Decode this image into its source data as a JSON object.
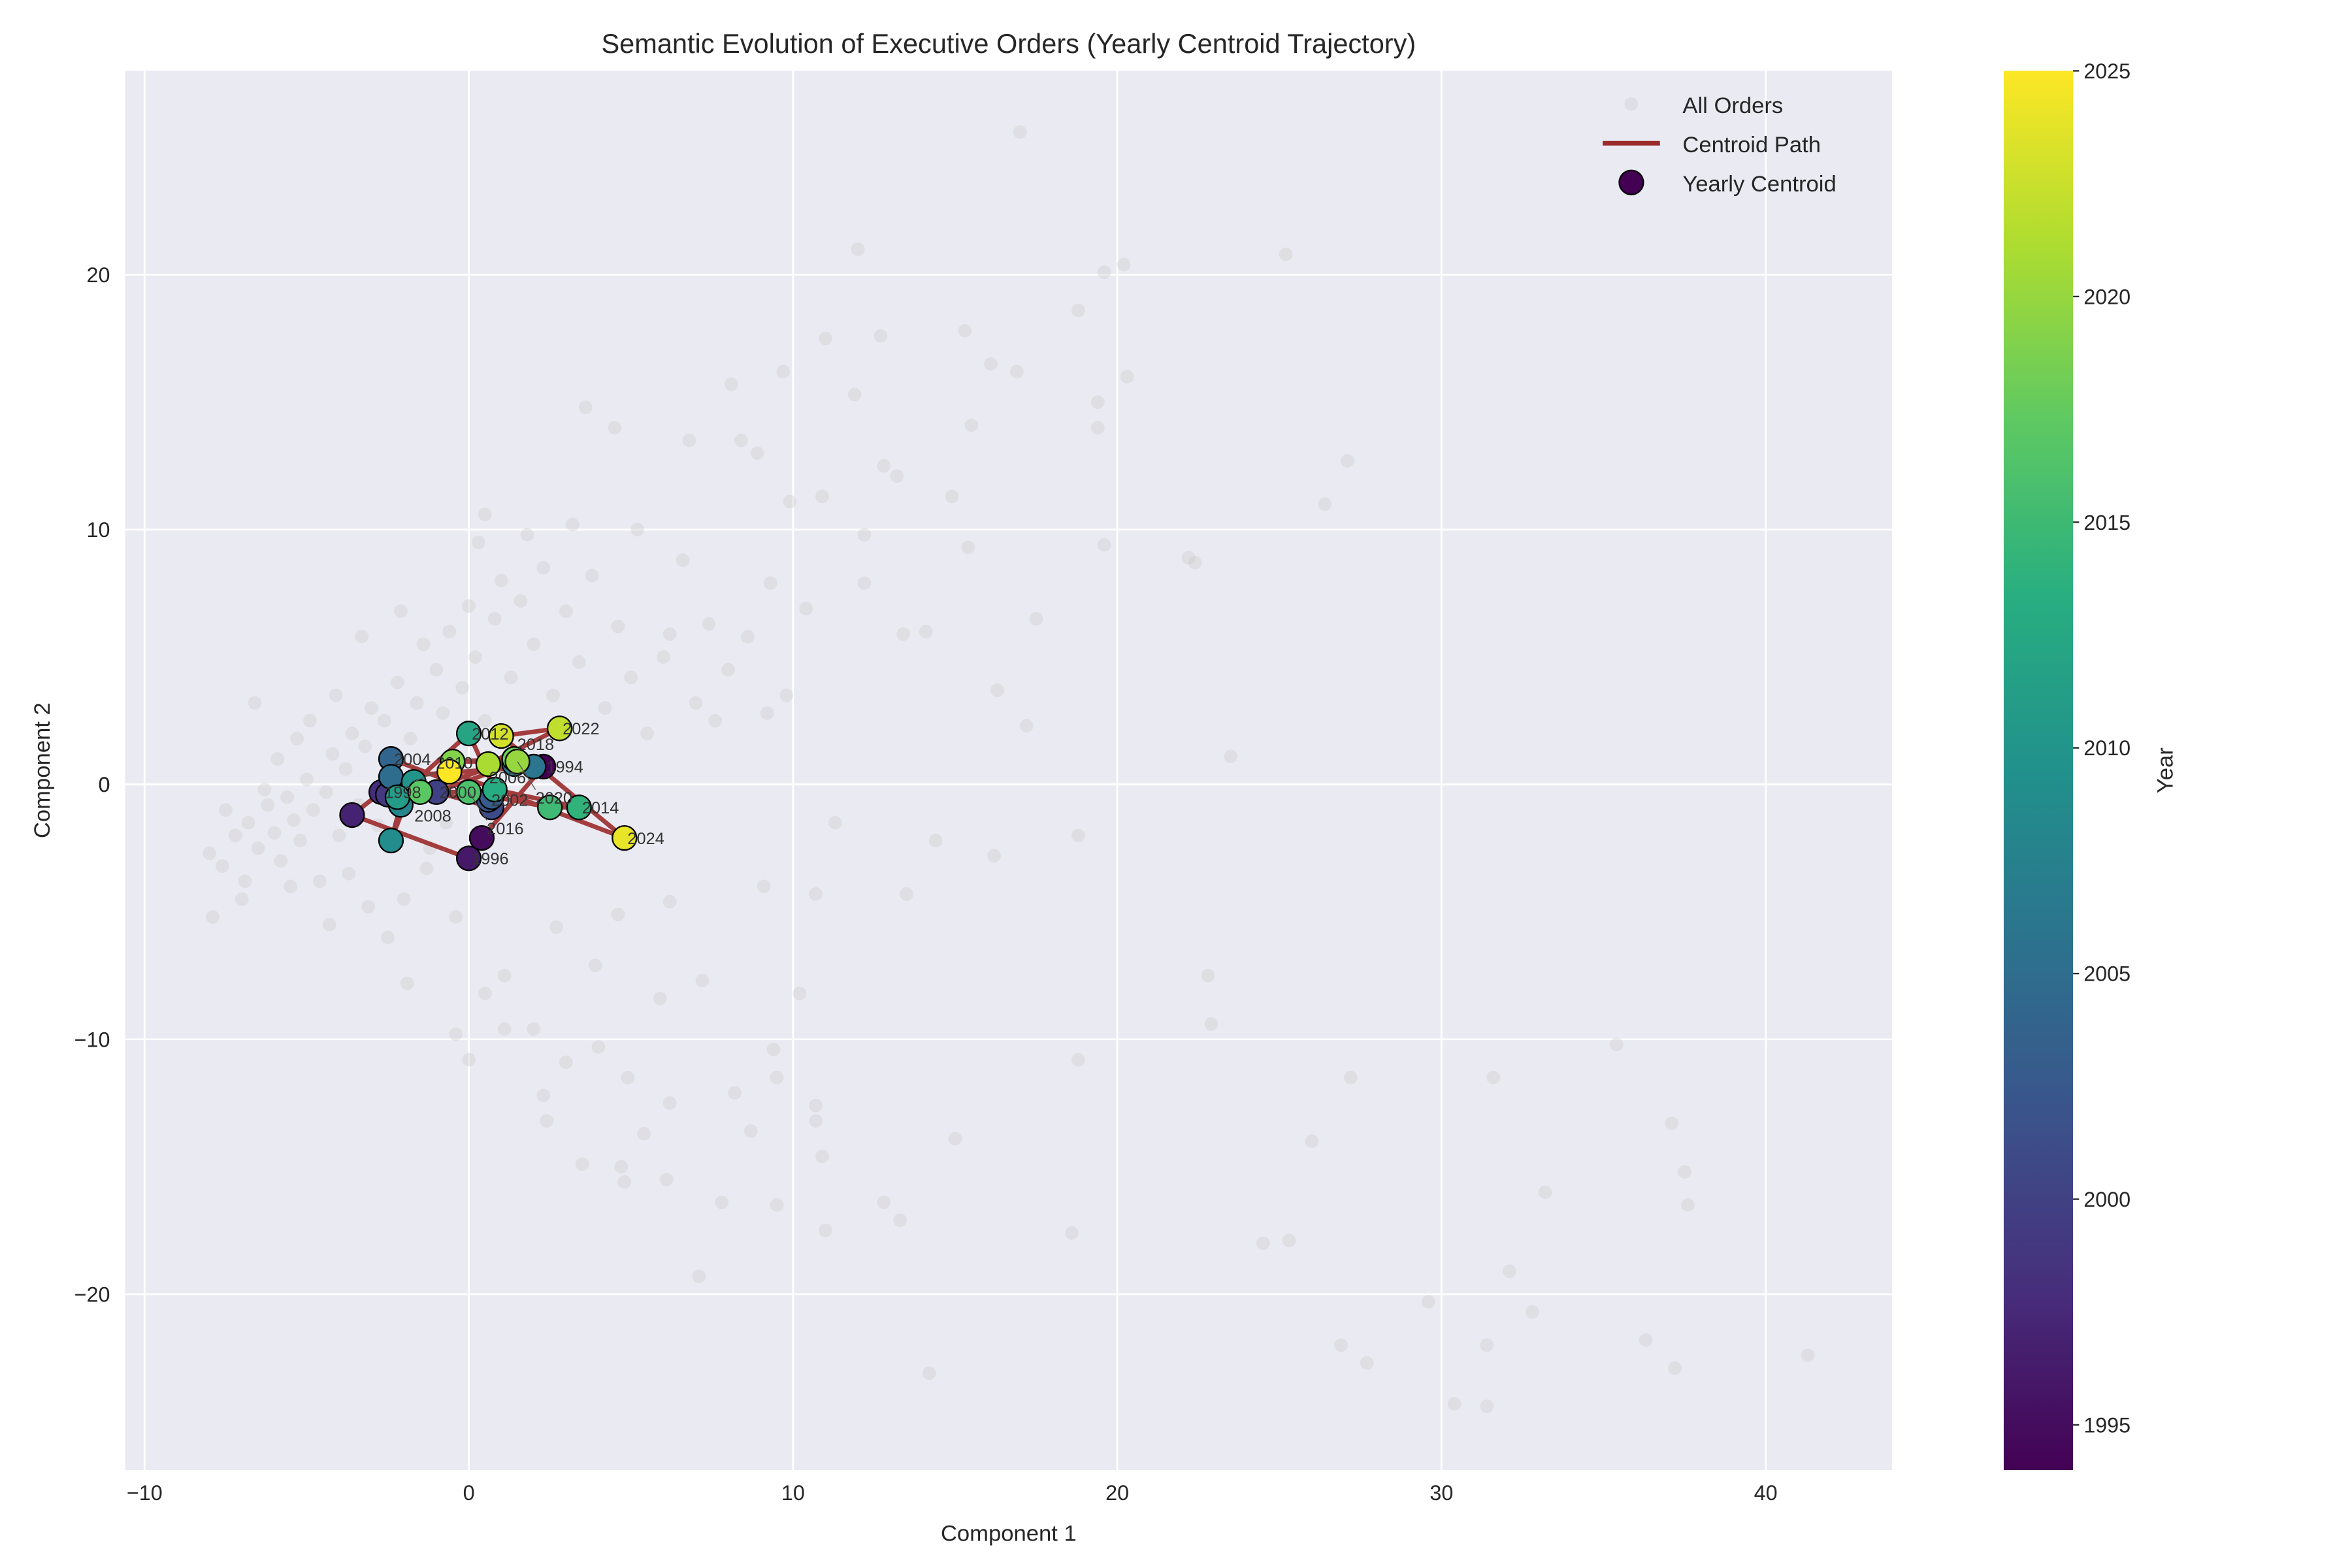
{
  "chart_data": {
    "type": "scatter",
    "title": "Semantic Evolution of Executive Orders (Yearly Centroid Trajectory)",
    "xlabel": "Component 1",
    "ylabel": "Component 2",
    "xlim": [
      -10.6,
      43.9
    ],
    "ylim": [
      -26.9,
      28.0
    ],
    "xticks": [
      -10,
      0,
      10,
      20,
      30,
      40
    ],
    "yticks": [
      -20,
      -10,
      0,
      10,
      20
    ],
    "grid": true,
    "background": "#eaeaf2",
    "legend": {
      "placement": "top-right",
      "entries": [
        "All Orders",
        "Centroid Path",
        "Yearly Centroid"
      ]
    },
    "colorbar": {
      "label": "Year",
      "range": [
        1994,
        2025
      ],
      "ticks": [
        1995,
        2000,
        2005,
        2010,
        2015,
        2020,
        2025
      ],
      "colormap": "viridis"
    },
    "path_color": "#9b2a2a",
    "orders_color": "#cccccc",
    "all_orders": [
      [
        17,
        25.6
      ],
      [
        12,
        21
      ],
      [
        25.2,
        20.8
      ],
      [
        19.6,
        20.1
      ],
      [
        20.2,
        20.4
      ],
      [
        19.4,
        15
      ],
      [
        18.8,
        18.6
      ],
      [
        20.3,
        16
      ],
      [
        16.1,
        16.5
      ],
      [
        16.9,
        16.2
      ],
      [
        15.3,
        17.8
      ],
      [
        11,
        17.5
      ],
      [
        12.7,
        17.6
      ],
      [
        9.7,
        16.2
      ],
      [
        8.1,
        15.7
      ],
      [
        11.9,
        15.3
      ],
      [
        15.5,
        14.1
      ],
      [
        19.4,
        14
      ],
      [
        22.2,
        8.9
      ],
      [
        22.4,
        8.7
      ],
      [
        19.6,
        9.4
      ],
      [
        27.1,
        12.7
      ],
      [
        26.4,
        11
      ],
      [
        23.5,
        1.1
      ],
      [
        17.5,
        6.5
      ],
      [
        17.2,
        2.3
      ],
      [
        16.3,
        3.7
      ],
      [
        14.9,
        11.3
      ],
      [
        13.2,
        12.1
      ],
      [
        12.8,
        12.5
      ],
      [
        10.9,
        11.3
      ],
      [
        9.9,
        11.1
      ],
      [
        8.9,
        13
      ],
      [
        8.4,
        13.5
      ],
      [
        6.8,
        13.5
      ],
      [
        4.5,
        14
      ],
      [
        3.6,
        14.8
      ],
      [
        10.4,
        6.9
      ],
      [
        12.2,
        7.9
      ],
      [
        14.1,
        6.0
      ],
      [
        13.4,
        5.9
      ],
      [
        15.4,
        9.3
      ],
      [
        12.2,
        9.8
      ],
      [
        9.3,
        7.9
      ],
      [
        7.4,
        6.3
      ],
      [
        6.2,
        5.9
      ],
      [
        5.2,
        10
      ],
      [
        3.2,
        10.2
      ],
      [
        1.8,
        9.8
      ],
      [
        0.3,
        9.5
      ],
      [
        0.5,
        10.6
      ],
      [
        11.3,
        -1.5
      ],
      [
        14.4,
        -2.2
      ],
      [
        18.8,
        -2.0
      ],
      [
        16.2,
        -2.8
      ],
      [
        13.5,
        -4.3
      ],
      [
        10.7,
        -4.3
      ],
      [
        9.1,
        -4.0
      ],
      [
        6.2,
        -4.6
      ],
      [
        4.6,
        -5.1
      ],
      [
        2.7,
        -5.6
      ],
      [
        3.9,
        -7.1
      ],
      [
        1.1,
        -7.5
      ],
      [
        0.5,
        -8.2
      ],
      [
        -0.4,
        -9.8
      ],
      [
        0.0,
        -10.8
      ],
      [
        1.1,
        -9.6
      ],
      [
        2.0,
        -9.6
      ],
      [
        3.0,
        -10.9
      ],
      [
        4.0,
        -10.3
      ],
      [
        4.9,
        -11.5
      ],
      [
        6.2,
        -12.5
      ],
      [
        7.2,
        -7.7
      ],
      [
        5.9,
        -8.4
      ],
      [
        8.2,
        -12.1
      ],
      [
        9.4,
        -10.4
      ],
      [
        9.5,
        -11.5
      ],
      [
        10.7,
        -12.6
      ],
      [
        10.7,
        -13.2
      ],
      [
        10.2,
        -8.2
      ],
      [
        10.9,
        -14.6
      ],
      [
        9.5,
        -16.5
      ],
      [
        8.7,
        -13.6
      ],
      [
        7.8,
        -16.4
      ],
      [
        7.1,
        -19.3
      ],
      [
        5.4,
        -13.7
      ],
      [
        4.7,
        -15
      ],
      [
        3.5,
        -14.9
      ],
      [
        2.3,
        -12.2
      ],
      [
        2.4,
        -13.2
      ],
      [
        4.8,
        -15.6
      ],
      [
        6.1,
        -15.5
      ],
      [
        11.0,
        -17.5
      ],
      [
        12.8,
        -16.4
      ],
      [
        13.3,
        -17.1
      ],
      [
        15.0,
        -13.9
      ],
      [
        14.2,
        -23.1
      ],
      [
        18.6,
        -17.6
      ],
      [
        18.8,
        -10.8
      ],
      [
        22.8,
        -7.5
      ],
      [
        22.9,
        -9.4
      ],
      [
        24.5,
        -18
      ],
      [
        25.3,
        -17.9
      ],
      [
        26.0,
        -14
      ],
      [
        27.2,
        -11.5
      ],
      [
        26.9,
        -22
      ],
      [
        27.7,
        -22.7
      ],
      [
        29.6,
        -20.3
      ],
      [
        30.4,
        -24.3
      ],
      [
        31.4,
        -24.4
      ],
      [
        31.4,
        -22
      ],
      [
        31.6,
        -11.5
      ],
      [
        32.1,
        -19.1
      ],
      [
        32.8,
        -20.7
      ],
      [
        33.2,
        -16
      ],
      [
        35.4,
        -10.2
      ],
      [
        36.3,
        -21.8
      ],
      [
        37.1,
        -13.3
      ],
      [
        37.2,
        -22.9
      ],
      [
        37.5,
        -15.2
      ],
      [
        37.6,
        -16.5
      ],
      [
        41.3,
        -22.4
      ],
      [
        -8,
        -2.7
      ],
      [
        -7.6,
        -3.2
      ],
      [
        -7.2,
        -2.0
      ],
      [
        -6.8,
        -1.5
      ],
      [
        -6.5,
        -2.5
      ],
      [
        -6.2,
        -0.8
      ],
      [
        -6.0,
        -1.9
      ],
      [
        -5.8,
        -3.0
      ],
      [
        -5.6,
        -0.5
      ],
      [
        -5.4,
        -1.4
      ],
      [
        -5.2,
        -2.2
      ],
      [
        -5.0,
        0.2
      ],
      [
        -4.8,
        -1.0
      ],
      [
        -4.6,
        -3.8
      ],
      [
        -4.4,
        -0.3
      ],
      [
        -4.2,
        1.2
      ],
      [
        -4.0,
        -2.0
      ],
      [
        -3.8,
        0.6
      ],
      [
        -3.6,
        2.0
      ],
      [
        -3.4,
        -0.8
      ],
      [
        -3.2,
        1.5
      ],
      [
        -3.0,
        3.0
      ],
      [
        -2.8,
        -1.6
      ],
      [
        -2.6,
        2.5
      ],
      [
        -2.4,
        0.2
      ],
      [
        -2.2,
        4.0
      ],
      [
        -2.0,
        -4.5
      ],
      [
        -1.8,
        1.8
      ],
      [
        -1.6,
        3.2
      ],
      [
        -1.4,
        5.5
      ],
      [
        -1.2,
        -2.5
      ],
      [
        -1.0,
        4.5
      ],
      [
        -0.8,
        2.8
      ],
      [
        -0.6,
        6.0
      ],
      [
        -0.4,
        -5.2
      ],
      [
        -0.2,
        3.8
      ],
      [
        0.0,
        7.0
      ],
      [
        0.2,
        5.0
      ],
      [
        0.5,
        2.5
      ],
      [
        0.8,
        6.5
      ],
      [
        1.0,
        8.0
      ],
      [
        1.3,
        4.2
      ],
      [
        1.6,
        7.2
      ],
      [
        2.0,
        5.5
      ],
      [
        2.3,
        8.5
      ],
      [
        2.6,
        3.5
      ],
      [
        3.0,
        6.8
      ],
      [
        3.4,
        4.8
      ],
      [
        3.8,
        8.2
      ],
      [
        4.2,
        3.0
      ],
      [
        4.6,
        6.2
      ],
      [
        5.0,
        4.2
      ],
      [
        5.5,
        2.0
      ],
      [
        6.0,
        5.0
      ],
      [
        6.6,
        8.8
      ],
      [
        7.0,
        3.2
      ],
      [
        7.6,
        2.5
      ],
      [
        8.0,
        4.5
      ],
      [
        8.6,
        5.8
      ],
      [
        9.2,
        2.8
      ],
      [
        9.8,
        3.5
      ],
      [
        -7.5,
        -1.0
      ],
      [
        -6.9,
        -3.8
      ],
      [
        -6.3,
        -0.2
      ],
      [
        -5.9,
        1.0
      ],
      [
        -5.5,
        -4.0
      ],
      [
        -4.9,
        2.5
      ],
      [
        -4.3,
        -5.5
      ],
      [
        -3.7,
        -3.5
      ],
      [
        -3.1,
        -4.8
      ],
      [
        -2.5,
        -6.0
      ],
      [
        -1.9,
        -7.8
      ],
      [
        -1.3,
        -3.3
      ],
      [
        -0.7,
        -1.5
      ],
      [
        -6.6,
        3.2
      ],
      [
        -5.3,
        1.8
      ],
      [
        -4.1,
        3.5
      ],
      [
        -3.3,
        5.8
      ],
      [
        -2.1,
        6.8
      ],
      [
        -7.9,
        -5.2
      ],
      [
        -7.0,
        -4.5
      ]
    ],
    "centroids": [
      {
        "year": 1994,
        "x": 2.3,
        "y": 0.7,
        "label": "1994"
      },
      {
        "year": 1995,
        "x": 0.4,
        "y": -2.1,
        "label": ""
      },
      {
        "year": 1996,
        "x": 0.0,
        "y": -2.9,
        "label": "1996"
      },
      {
        "year": 1997,
        "x": -3.6,
        "y": -1.2,
        "label": ""
      },
      {
        "year": 1998,
        "x": -2.7,
        "y": -0.3,
        "label": "1998"
      },
      {
        "year": 1999,
        "x": -2.5,
        "y": -0.4,
        "label": ""
      },
      {
        "year": 2000,
        "x": -1.0,
        "y": -0.3,
        "label": "2000"
      },
      {
        "year": 2001,
        "x": 0.7,
        "y": -0.9,
        "label": ""
      },
      {
        "year": 2002,
        "x": 0.6,
        "y": -0.6,
        "label": "2002"
      },
      {
        "year": 2003,
        "x": 0.7,
        "y": -0.5,
        "label": ""
      },
      {
        "year": 2004,
        "x": -2.4,
        "y": 1.0,
        "label": "2004"
      },
      {
        "year": 2005,
        "x": -2.4,
        "y": 0.3,
        "label": ""
      },
      {
        "year": 2006,
        "x": 2.0,
        "y": 0.7,
        "label": "2006"
      },
      {
        "year": 2007,
        "x": 1.4,
        "y": 0.8,
        "label": ""
      },
      {
        "year": 2008,
        "x": -2.1,
        "y": -0.8,
        "label": "2008"
      },
      {
        "year": 2009,
        "x": -2.4,
        "y": -2.2,
        "label": ""
      },
      {
        "year": 2010,
        "x": -1.7,
        "y": 0.1,
        "label": "2010"
      },
      {
        "year": 2011,
        "x": -2.2,
        "y": -0.5,
        "label": ""
      },
      {
        "year": 2012,
        "x": 0.0,
        "y": 2.0,
        "label": "2012"
      },
      {
        "year": 2013,
        "x": 0.8,
        "y": -0.2,
        "label": ""
      },
      {
        "year": 2014,
        "x": 3.4,
        "y": -0.9,
        "label": "2014"
      },
      {
        "year": 2015,
        "x": 2.5,
        "y": -0.9,
        "label": ""
      },
      {
        "year": 2016,
        "x": 0.0,
        "y": -0.3,
        "label": "2016"
      },
      {
        "year": 2017,
        "x": -1.5,
        "y": -0.3,
        "label": ""
      },
      {
        "year": 2018,
        "x": 1.4,
        "y": 1.0,
        "label": "2018"
      },
      {
        "year": 2019,
        "x": -0.5,
        "y": 0.9,
        "label": ""
      },
      {
        "year": 2020,
        "x": 1.5,
        "y": 0.9,
        "label": "2020"
      },
      {
        "year": 2021,
        "x": 0.6,
        "y": 0.8,
        "label": ""
      },
      {
        "year": 2022,
        "x": 2.8,
        "y": 2.2,
        "label": "2022"
      },
      {
        "year": 2023,
        "x": 1.0,
        "y": 1.9,
        "label": ""
      },
      {
        "year": 2024,
        "x": 4.8,
        "y": -2.1,
        "label": "2024"
      },
      {
        "year": 2025,
        "x": -0.6,
        "y": 0.5,
        "label": ""
      }
    ]
  }
}
